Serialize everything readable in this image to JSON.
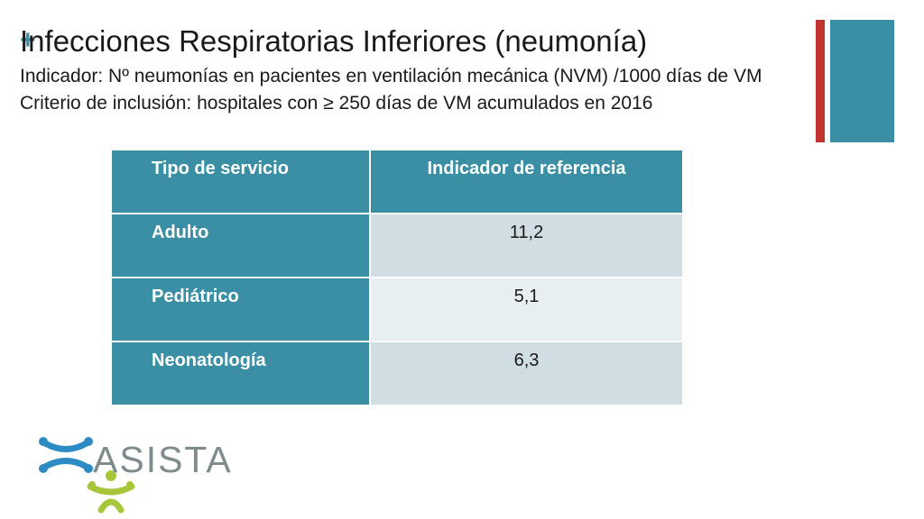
{
  "slide": {
    "title": "Infecciones Respiratorias Inferiores (neumonía)",
    "indicator": "Indicador: Nº neumonías en pacientes en ventilación mecánica (NVM) /1000 días de  VM",
    "criterion": "Criterio de inclusión: hospitales con ≥ 250 días de VM acumulados en 2016"
  },
  "table": {
    "headers": [
      "Tipo de servicio",
      "Indicador de referencia"
    ],
    "rows": [
      {
        "service": "Adulto",
        "value": "11,2"
      },
      {
        "service": "Pediátrico",
        "value": "5,1"
      },
      {
        "service": "Neonatología",
        "value": "6,3"
      }
    ]
  },
  "logo": {
    "text": "ASISTA"
  },
  "icons": {
    "corner": "plus-icon",
    "logo": "asista-logo-icon"
  },
  "colors": {
    "teal": "#3a8fa4",
    "accent_red": "#c0332f",
    "row_light_a": "#d0dde3",
    "row_light_b": "#e8eff2",
    "logo_blue": "#2b8bc2",
    "logo_green": "#a8c63a",
    "logo_gray": "#7f8c8d"
  }
}
